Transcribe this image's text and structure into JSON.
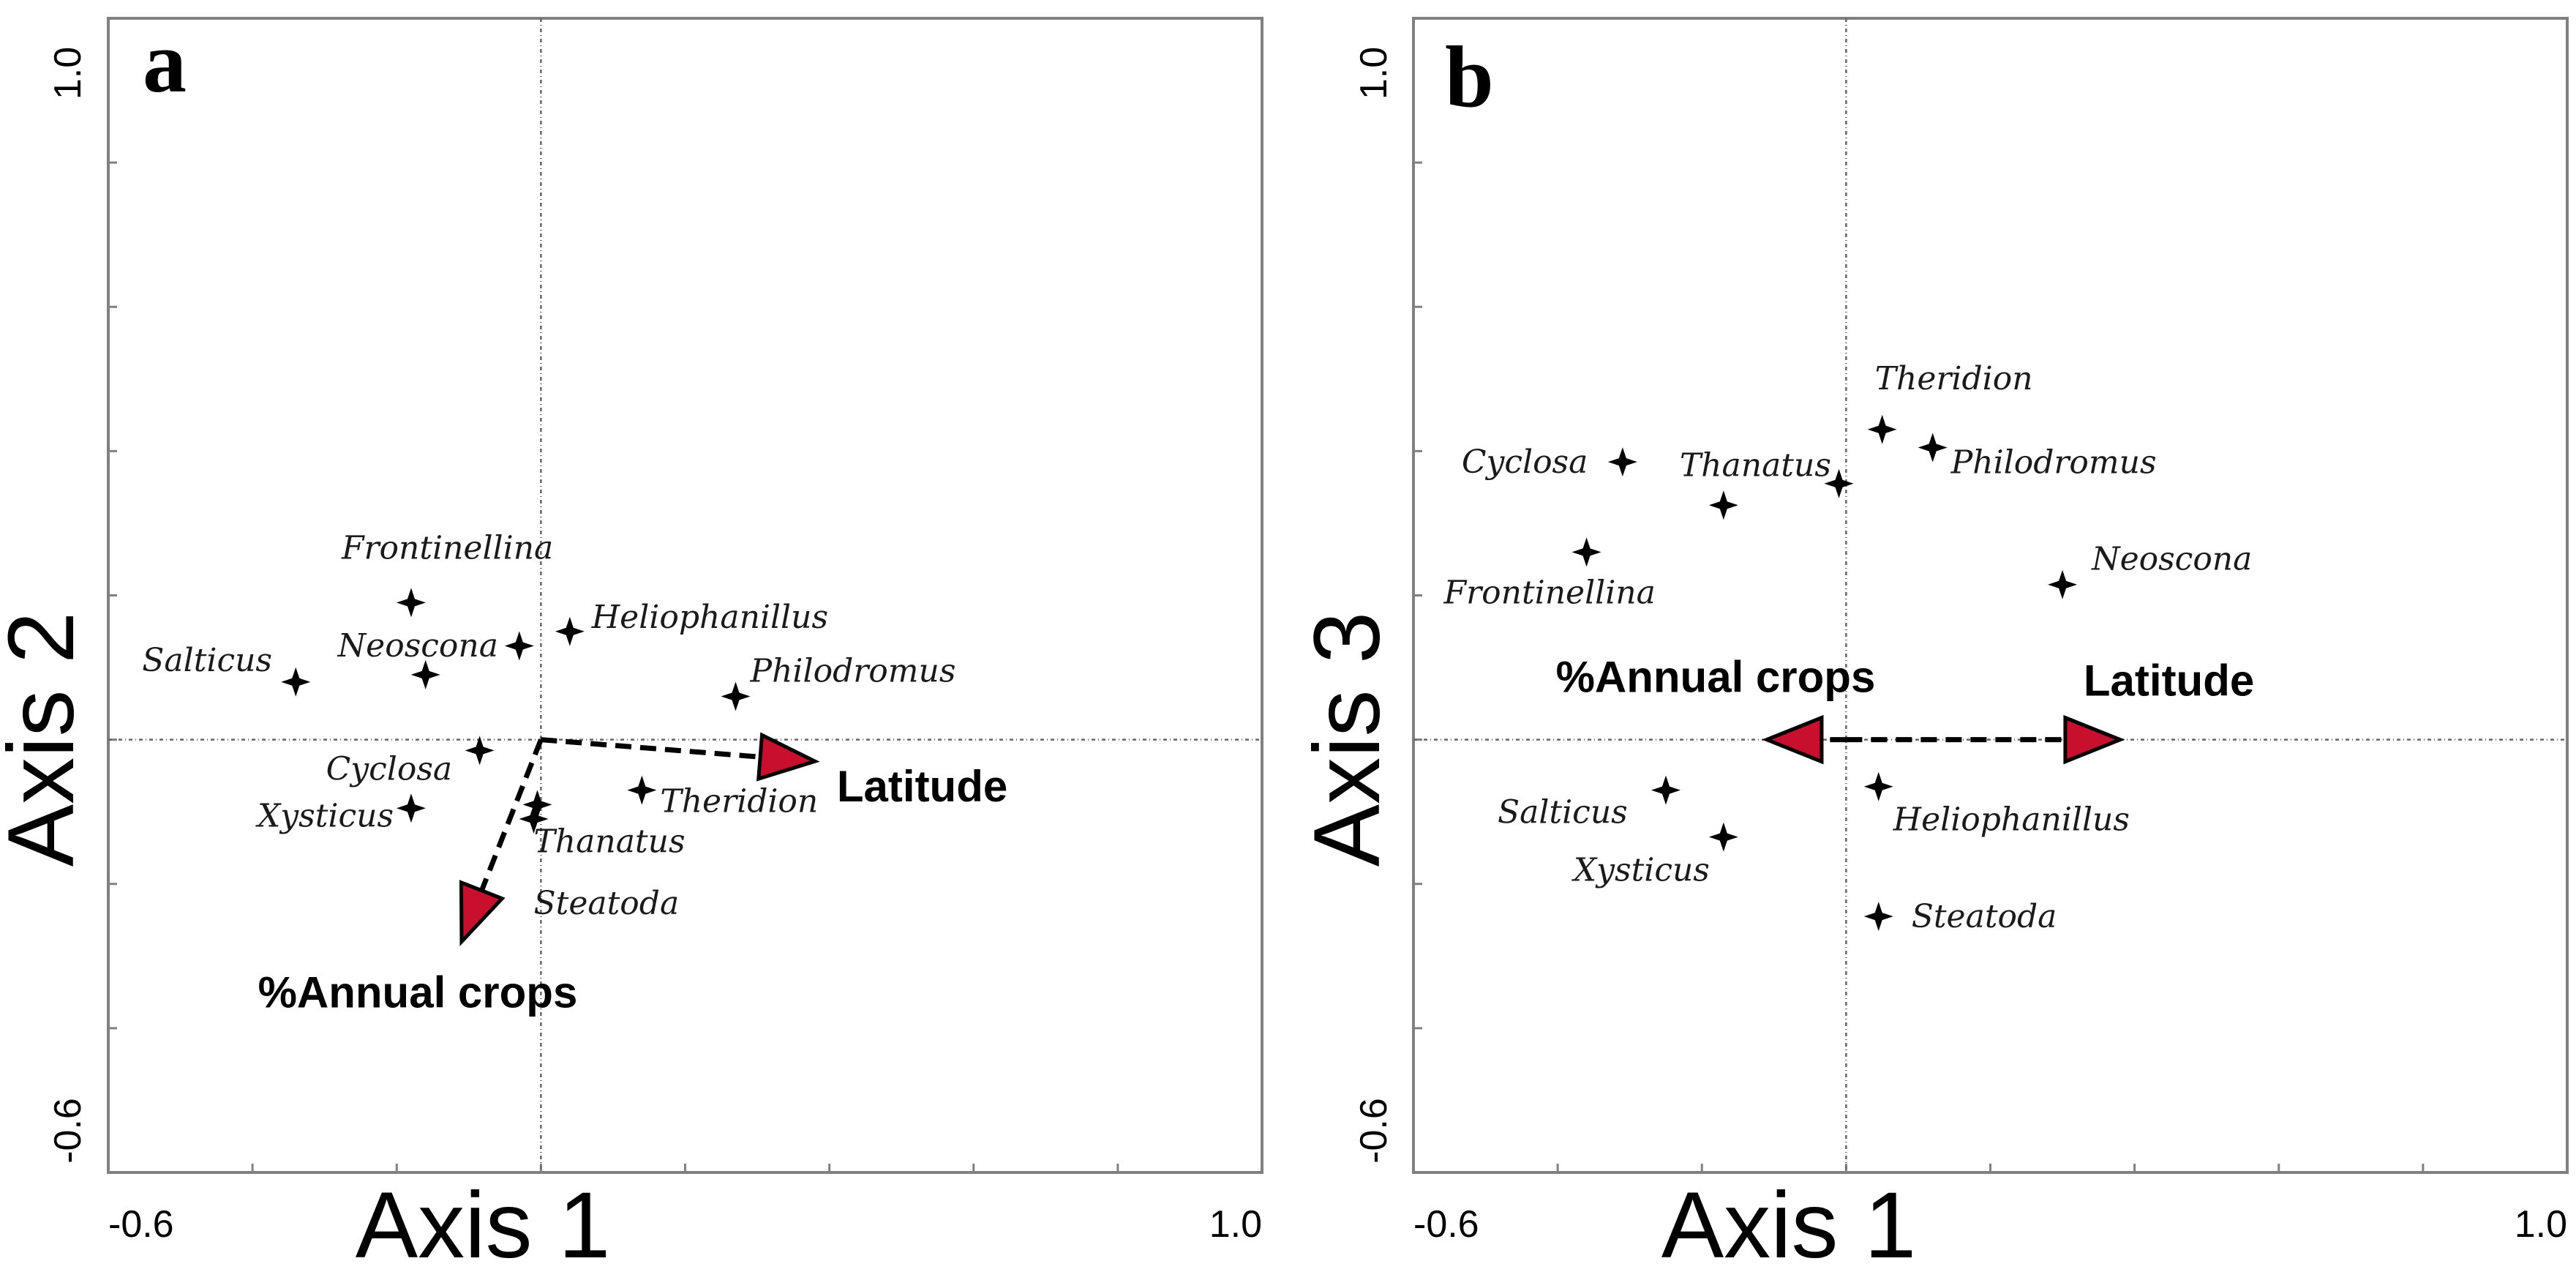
{
  "colors": {
    "arrow_fill": "#c8102e",
    "marker": "#000000"
  },
  "chart_data": [
    {
      "type": "scatter",
      "panel": "a",
      "xlabel": "Axis 1",
      "ylabel": "Axis 2",
      "xlim": [
        -0.6,
        1.0
      ],
      "ylim": [
        -0.6,
        1.0
      ],
      "x_tick_labels": {
        "min": "-0.6",
        "max": "1.0"
      },
      "y_tick_labels": {
        "min": "-0.6",
        "max": "1.0"
      },
      "points": [
        {
          "label": "Salticus",
          "x": -0.34,
          "y": 0.08
        },
        {
          "label": "Frontinellina",
          "x": -0.18,
          "y": 0.19
        },
        {
          "label": "Neoscona",
          "x": -0.16,
          "y": 0.09
        },
        {
          "label": "Heliophanillus",
          "x": 0.04,
          "y": 0.15
        },
        {
          "label": "Philodromus",
          "x": 0.27,
          "y": 0.06
        },
        {
          "label": "Cyclosa",
          "x": -0.085,
          "y": -0.015
        },
        {
          "label": "Xysticus",
          "x": -0.18,
          "y": -0.095
        },
        {
          "label": "Theridion",
          "x": 0.14,
          "y": -0.07
        },
        {
          "label": "Thanatus",
          "x": -0.005,
          "y": -0.09
        },
        {
          "label": "Steatoda",
          "x": -0.01,
          "y": -0.11
        },
        {
          "label": "",
          "x": -0.03,
          "y": 0.13
        }
      ],
      "vectors": [
        {
          "label": "Latitude",
          "x": 0.38,
          "y": -0.03
        },
        {
          "label": "%Annual crops",
          "x": -0.11,
          "y": -0.28
        }
      ]
    },
    {
      "type": "scatter",
      "panel": "b",
      "xlabel": "Axis 1",
      "ylabel": "Axis 3",
      "xlim": [
        -0.6,
        1.0
      ],
      "ylim": [
        -0.6,
        1.0
      ],
      "x_tick_labels": {
        "min": "-0.6",
        "max": "1.0"
      },
      "y_tick_labels": {
        "min": "-0.6",
        "max": "1.0"
      },
      "points": [
        {
          "label": "Theridion",
          "x": 0.05,
          "y": 0.43
        },
        {
          "label": "Philodromus",
          "x": 0.12,
          "y": 0.405
        },
        {
          "label": "Cyclosa",
          "x": -0.31,
          "y": 0.385
        },
        {
          "label": "Thanatus",
          "x": -0.17,
          "y": 0.325
        },
        {
          "label": "",
          "x": -0.01,
          "y": 0.355
        },
        {
          "label": "Frontinellina",
          "x": -0.36,
          "y": 0.26
        },
        {
          "label": "Neoscona",
          "x": 0.3,
          "y": 0.215
        },
        {
          "label": "Salticus",
          "x": -0.25,
          "y": -0.07
        },
        {
          "label": "Heliophanillus",
          "x": 0.045,
          "y": -0.065
        },
        {
          "label": "Xysticus",
          "x": -0.17,
          "y": -0.135
        },
        {
          "label": "Steatoda",
          "x": 0.045,
          "y": -0.245
        }
      ],
      "vectors": [
        {
          "label": "Latitude",
          "x": 0.38,
          "y": 0.0
        },
        {
          "label": "%Annual crops",
          "x": -0.11,
          "y": 0.0
        }
      ]
    }
  ]
}
